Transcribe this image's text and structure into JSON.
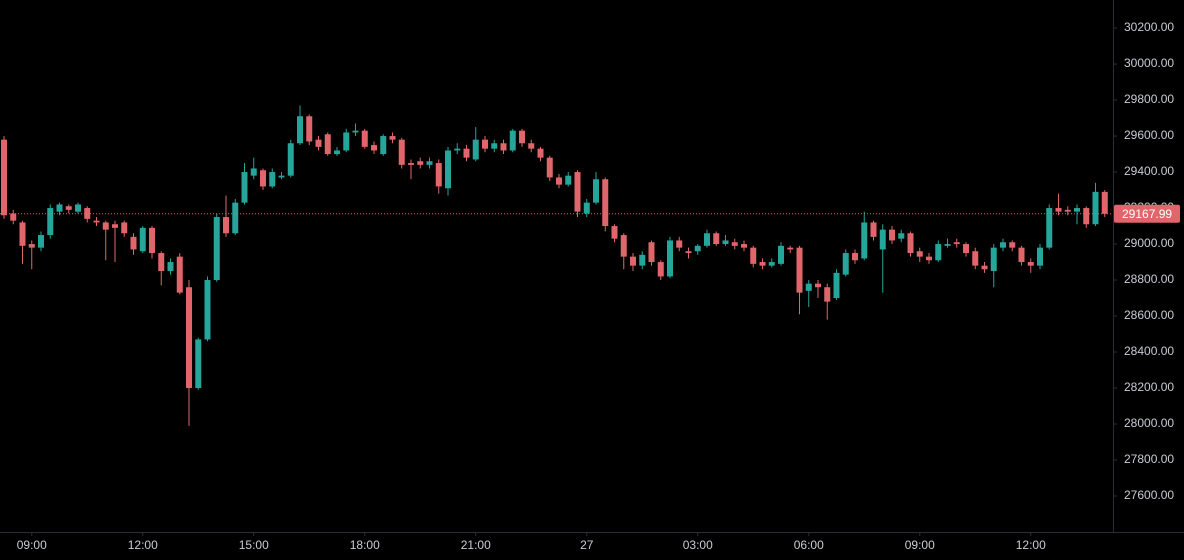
{
  "chart_data": {
    "type": "candlestick",
    "up_color": "#26a69a",
    "down_color": "#e0666b",
    "grid": false,
    "ylim": [
      27400,
      30356
    ],
    "yticks": [
      {
        "value": 27600,
        "label": "27600.00"
      },
      {
        "value": 27800,
        "label": "27800.00"
      },
      {
        "value": 28000,
        "label": "28000.00"
      },
      {
        "value": 28200,
        "label": "28200.00"
      },
      {
        "value": 28400,
        "label": "28400.00"
      },
      {
        "value": 28600,
        "label": "28600.00"
      },
      {
        "value": 28800,
        "label": "28800.00"
      },
      {
        "value": 29000,
        "label": "29000.00"
      },
      {
        "value": 29200,
        "label": "29200.00"
      },
      {
        "value": 29400,
        "label": "29400.00"
      },
      {
        "value": 29600,
        "label": "29600.00"
      },
      {
        "value": 29800,
        "label": "29800.00"
      },
      {
        "value": 30000,
        "label": "30000.00"
      },
      {
        "value": 30200,
        "label": "30200.00"
      }
    ],
    "xticks": [
      {
        "value": 3,
        "label": "09:00"
      },
      {
        "value": 15,
        "label": "12:00"
      },
      {
        "value": 27,
        "label": "15:00"
      },
      {
        "value": 39,
        "label": "18:00"
      },
      {
        "value": 51,
        "label": "21:00"
      },
      {
        "value": 63,
        "label": "27"
      },
      {
        "value": 75,
        "label": "03:00"
      },
      {
        "value": 87,
        "label": "06:00"
      },
      {
        "value": 99,
        "label": "09:00"
      },
      {
        "value": 111,
        "label": "12:00"
      }
    ],
    "last_price": 29167.99,
    "open": [
      29580,
      29170,
      29120,
      29000,
      28980,
      29050,
      29180,
      29210,
      29180,
      29200,
      29130,
      29120,
      29110,
      29120,
      29040,
      28960,
      29090,
      28950,
      28850,
      28930,
      28760,
      28200,
      28470,
      28800,
      29150,
      29060,
      29230,
      29380,
      29410,
      29320,
      29370,
      29380,
      29560,
      29710,
      29580,
      29610,
      29500,
      29520,
      29620,
      29630,
      29550,
      29500,
      29600,
      29580,
      29450,
      29460,
      29440,
      29450,
      29310,
      29520,
      29530,
      29470,
      29580,
      29530,
      29560,
      29520,
      29630,
      29560,
      29530,
      29480,
      29370,
      29330,
      29400,
      29170,
      29230,
      29360,
      29100,
      29050,
      28930,
      28880,
      29010,
      28900,
      28820,
      29020,
      28960,
      28960,
      28990,
      29060,
      29000,
      29010,
      29000,
      28980,
      28900,
      28880,
      28890,
      28980,
      28980,
      28740,
      28780,
      28760,
      28700,
      28830,
      28950,
      28920,
      29120,
      28970,
      29080,
      29030,
      29060,
      28960,
      28930,
      28910,
      28990,
      29010,
      29000,
      28960,
      28880,
      28850,
      28980,
      29010,
      28980,
      28900,
      28880,
      28980,
      29200,
      29190,
      29180,
      29200,
      29110,
      29290
    ],
    "high": [
      29600,
      29190,
      29130,
      29020,
      29070,
      29220,
      29230,
      29220,
      29230,
      29210,
      29150,
      29130,
      29130,
      29130,
      29060,
      29100,
      29100,
      28960,
      28920,
      28950,
      28800,
      28480,
      28820,
      29170,
      29270,
      29250,
      29450,
      29480,
      29420,
      29420,
      29400,
      29580,
      29770,
      29720,
      29600,
      29620,
      29540,
      29640,
      29670,
      29640,
      29570,
      29610,
      29620,
      29590,
      29470,
      29480,
      29480,
      29470,
      29540,
      29560,
      29550,
      29650,
      29600,
      29580,
      29580,
      29640,
      29640,
      29580,
      29540,
      29490,
      29390,
      29400,
      29410,
      29250,
      29400,
      29370,
      29110,
      29060,
      28950,
      28960,
      29020,
      28910,
      29040,
      29040,
      28980,
      29000,
      29080,
      29070,
      29050,
      29030,
      29020,
      28990,
      28920,
      28920,
      29010,
      28990,
      28990,
      28800,
      28800,
      28780,
      28860,
      28970,
      28970,
      29180,
      29130,
      29110,
      29100,
      29080,
      29070,
      28980,
      28950,
      29020,
      29030,
      29030,
      29010,
      28980,
      28900,
      29000,
      29030,
      29020,
      28990,
      28920,
      29000,
      29220,
      29280,
      29210,
      29220,
      29210,
      29340,
      29300
    ],
    "low": [
      29140,
      29110,
      28890,
      28860,
      28960,
      29030,
      29160,
      29170,
      29170,
      29120,
      29100,
      28910,
      28900,
      29040,
      28940,
      28950,
      28920,
      28770,
      28830,
      28720,
      27990,
      28190,
      28460,
      28790,
      29040,
      29050,
      29220,
      29360,
      29300,
      29310,
      29360,
      29370,
      29550,
      29550,
      29520,
      29490,
      29490,
      29510,
      29600,
      29530,
      29500,
      29490,
      29560,
      29420,
      29360,
      29420,
      29420,
      29280,
      29270,
      29500,
      29460,
      29460,
      29510,
      29510,
      29500,
      29510,
      29540,
      29510,
      29460,
      29350,
      29310,
      29320,
      29150,
      29150,
      29220,
      29070,
      29010,
      28860,
      28850,
      28860,
      28880,
      28800,
      28810,
      28960,
      28920,
      28940,
      28980,
      28990,
      28990,
      28970,
      28960,
      28870,
      28860,
      28870,
      28880,
      28950,
      28610,
      28650,
      28700,
      28580,
      28690,
      28820,
      28890,
      28910,
      29020,
      28730,
      29000,
      29010,
      28930,
      28900,
      28890,
      28900,
      28980,
      28980,
      28930,
      28860,
      28840,
      28760,
      28960,
      28960,
      28880,
      28840,
      28860,
      28970,
      29160,
      29160,
      29110,
      29090,
      29100,
      29150
    ],
    "close": [
      29160,
      29130,
      28990,
      28980,
      29050,
      29200,
      29220,
      29190,
      29220,
      29140,
      29120,
      29080,
      29090,
      29060,
      28970,
      29090,
      28950,
      28850,
      28900,
      28730,
      28200,
      28470,
      28800,
      29150,
      29060,
      29230,
      29400,
      29420,
      29320,
      29400,
      29380,
      29560,
      29710,
      29570,
      29540,
      29500,
      29520,
      29620,
      29630,
      29540,
      29520,
      29600,
      29580,
      29440,
      29440,
      29440,
      29460,
      29320,
      29520,
      29530,
      29480,
      29580,
      29530,
      29560,
      29520,
      29630,
      29560,
      29530,
      29480,
      29370,
      29330,
      29380,
      29180,
      29230,
      29360,
      29100,
      29030,
      28930,
      28880,
      28940,
      28900,
      28820,
      29020,
      28980,
      28950,
      28990,
      29060,
      29000,
      29020,
      28990,
      28980,
      28890,
      28880,
      28900,
      28990,
      28970,
      28730,
      28780,
      28760,
      28680,
      28840,
      28950,
      28910,
      29120,
      29040,
      29080,
      29020,
      29060,
      28950,
      28930,
      28910,
      29000,
      29000,
      29000,
      28950,
      28880,
      28860,
      28980,
      29010,
      28980,
      28900,
      28880,
      28980,
      29200,
      29180,
      29180,
      29200,
      29110,
      29290,
      29167.99
    ]
  }
}
